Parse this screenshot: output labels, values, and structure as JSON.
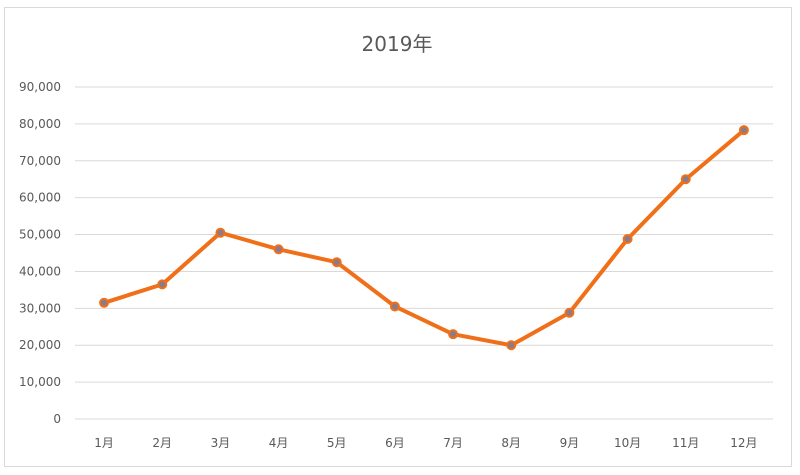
{
  "chart_data": {
    "type": "line",
    "title": "2019年",
    "xlabel": "",
    "ylabel": "",
    "categories": [
      "1月",
      "2月",
      "3月",
      "4月",
      "5月",
      "6月",
      "7月",
      "8月",
      "9月",
      "10月",
      "11月",
      "12月"
    ],
    "series": [
      {
        "values": [
          31500,
          36500,
          50500,
          46000,
          42500,
          30500,
          23000,
          20000,
          28800,
          48800,
          65000,
          78300
        ]
      }
    ],
    "ylim": [
      0,
      90000
    ],
    "y_ticks": [
      "0",
      "10,000",
      "20,000",
      "30,000",
      "40,000",
      "50,000",
      "60,000",
      "70,000",
      "80,000",
      "90,000"
    ],
    "grid": true,
    "legend": "none",
    "colors": {
      "line": "#f07019",
      "marker_fill": "#8a7a8a",
      "grid": "#d9d9d9",
      "text": "#595959"
    }
  }
}
